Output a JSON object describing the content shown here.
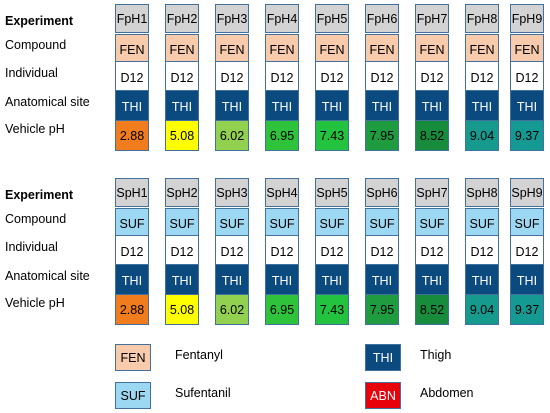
{
  "colors": {
    "experiment": "#d3d3d3",
    "FEN": "#f8cbad",
    "SUF": "#9dd8f2",
    "individual": "#ffffff",
    "THI": "#0a4a7e",
    "ABN": "#e8000b",
    "border": "#41719c"
  },
  "row_labels": {
    "experiment": "Experiment",
    "compound": "Compound",
    "individual": "Individual",
    "site": "Anatomical site",
    "ph": "Vehicle pH"
  },
  "panels": [
    {
      "experiments": [
        "FpH1",
        "FpH2",
        "FpH3",
        "FpH4",
        "FpH5",
        "FpH6",
        "FpH7",
        "FpH8",
        "FpH9"
      ],
      "compound": "FEN",
      "individual": "D12",
      "site": "THI",
      "ph": [
        "2.88",
        "5.08",
        "6.02",
        "6.95",
        "7.43",
        "7.95",
        "8.52",
        "9.04",
        "9.37"
      ]
    },
    {
      "experiments": [
        "SpH1",
        "SpH2",
        "SpH3",
        "SpH4",
        "SpH5",
        "SpH6",
        "SpH7",
        "SpH8",
        "SpH9"
      ],
      "compound": "SUF",
      "individual": "D12",
      "site": "THI",
      "ph": [
        "2.88",
        "5.08",
        "6.02",
        "6.95",
        "7.43",
        "7.95",
        "8.52",
        "9.04",
        "9.37"
      ]
    }
  ],
  "ph_colors": [
    "#f07c1e",
    "#ffff00",
    "#92d050",
    "#2ec33a",
    "#23c33f",
    "#1f9b40",
    "#178c3c",
    "#169a8e",
    "#149a93"
  ],
  "legend": [
    {
      "code": "FEN",
      "label": "Fentanyl",
      "color": "#f8cbad",
      "text_color": "#000000"
    },
    {
      "code": "SUF",
      "label": "Sufentanil",
      "color": "#9dd8f2",
      "text_color": "#000000"
    },
    {
      "code": "THI",
      "label": "Thigh",
      "color": "#0a4a7e",
      "text_color": "#ffffff"
    },
    {
      "code": "ABN",
      "label": "Abdomen",
      "color": "#e8000b",
      "text_color": "#ffffff"
    }
  ]
}
